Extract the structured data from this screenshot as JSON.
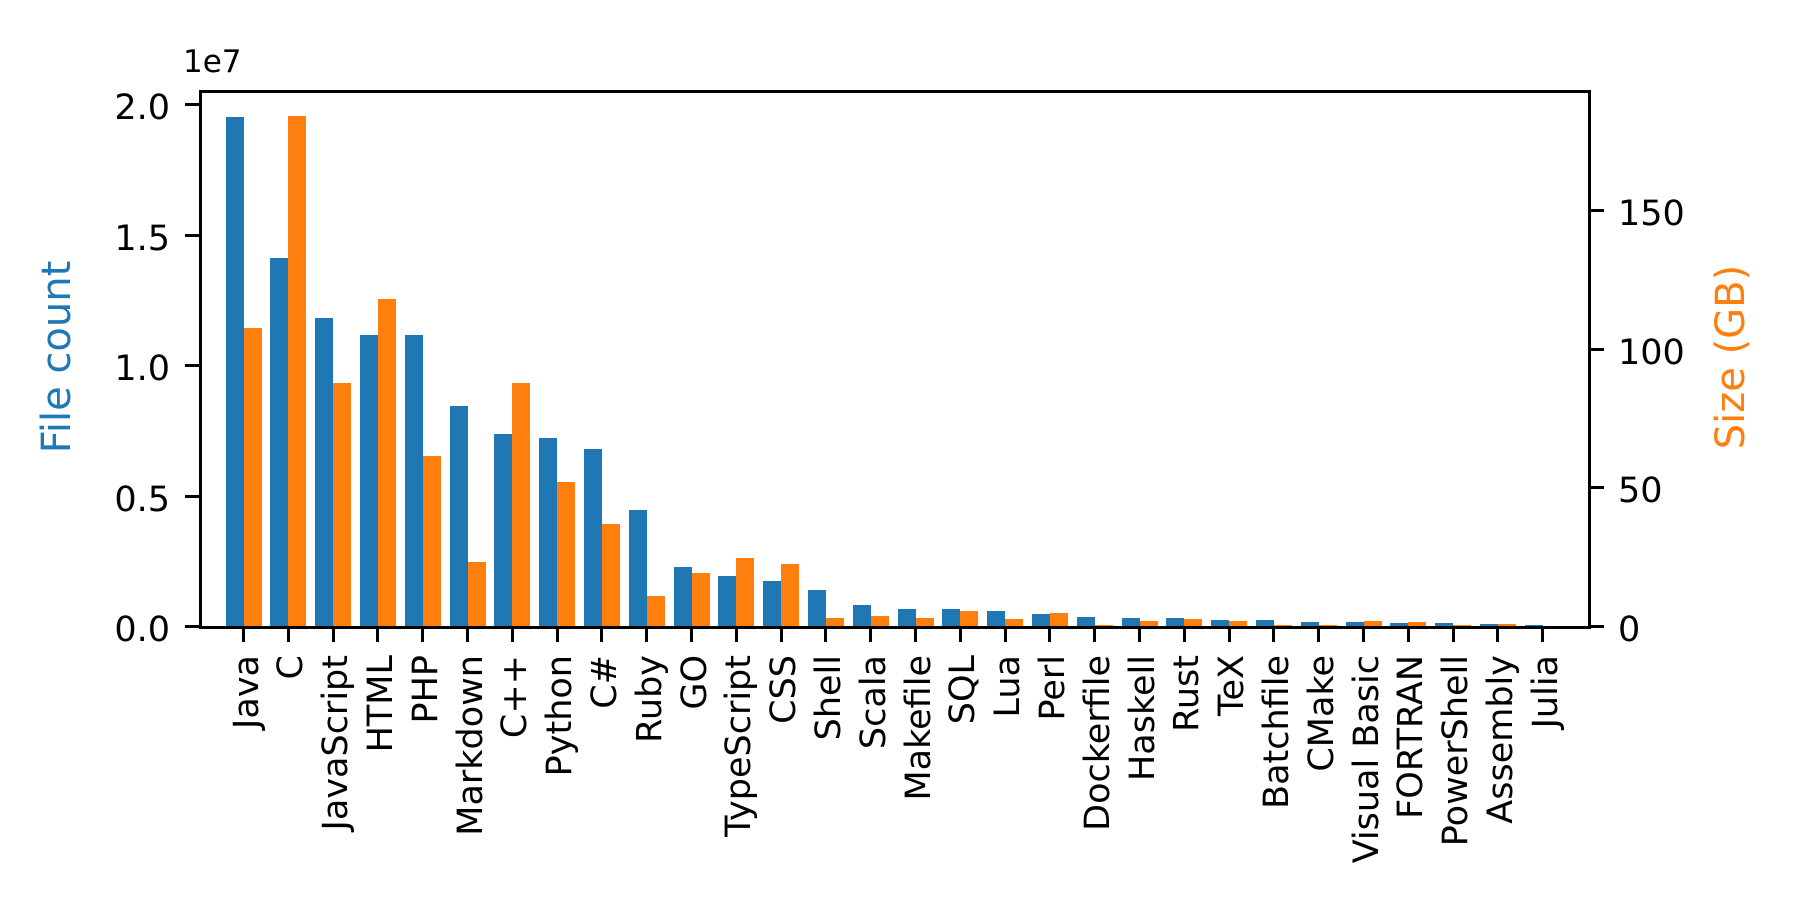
{
  "chart_data": {
    "type": "bar",
    "title": "",
    "grid": false,
    "legend": "none",
    "categories": [
      "Java",
      "C",
      "JavaScript",
      "HTML",
      "PHP",
      "Markdown",
      "C++",
      "Python",
      "C#",
      "Ruby",
      "GO",
      "TypeScript",
      "CSS",
      "Shell",
      "Scala",
      "Makefile",
      "SQL",
      "Lua",
      "Perl",
      "Dockerfile",
      "Haskell",
      "Rust",
      "TeX",
      "Batchfile",
      "CMake",
      "Visual Basic",
      "FORTRAN",
      "PowerShell",
      "Assembly",
      "Julia"
    ],
    "series": [
      {
        "name": "File count",
        "axis": "left",
        "color": "#1f77b4",
        "values": [
          19548190,
          14143113,
          11839883,
          11178557,
          11177610,
          8464626,
          7380520,
          7226626,
          6811652,
          4473331,
          2265436,
          1940406,
          1734406,
          1385648,
          835755,
          679430,
          656671,
          578554,
          497949,
          366505,
          340623,
          322431,
          251015,
          236945,
          175282,
          155652,
          142038,
          136846,
          82905,
          58317
        ]
      },
      {
        "name": "Size (GB)",
        "axis": "right",
        "color": "#ff7f0e",
        "values": [
          107.7,
          183.83,
          87.82,
          118.12,
          61.41,
          23.09,
          87.73,
          52.03,
          36.83,
          10.95,
          19.28,
          24.59,
          22.67,
          3.01,
          3.87,
          2.92,
          5.67,
          2.81,
          4.7,
          0.71,
          1.85,
          2.68,
          2.15,
          0.7,
          0.54,
          1.91,
          1.62,
          0.69,
          0.78,
          0.29
        ]
      }
    ],
    "left_axis": {
      "label": "File count",
      "offset_text": "1e7",
      "tick_labels": [
        "0.0",
        "0.5",
        "1.0",
        "1.5",
        "2.0"
      ],
      "tick_values": [
        0,
        5000000,
        10000000,
        15000000,
        20000000
      ],
      "ylim": [
        0,
        20525600
      ]
    },
    "right_axis": {
      "label": "Size (GB)",
      "tick_labels": [
        "0",
        "50",
        "100",
        "150"
      ],
      "tick_values": [
        0,
        50,
        100,
        150
      ],
      "ylim": [
        0,
        193.0
      ]
    }
  }
}
